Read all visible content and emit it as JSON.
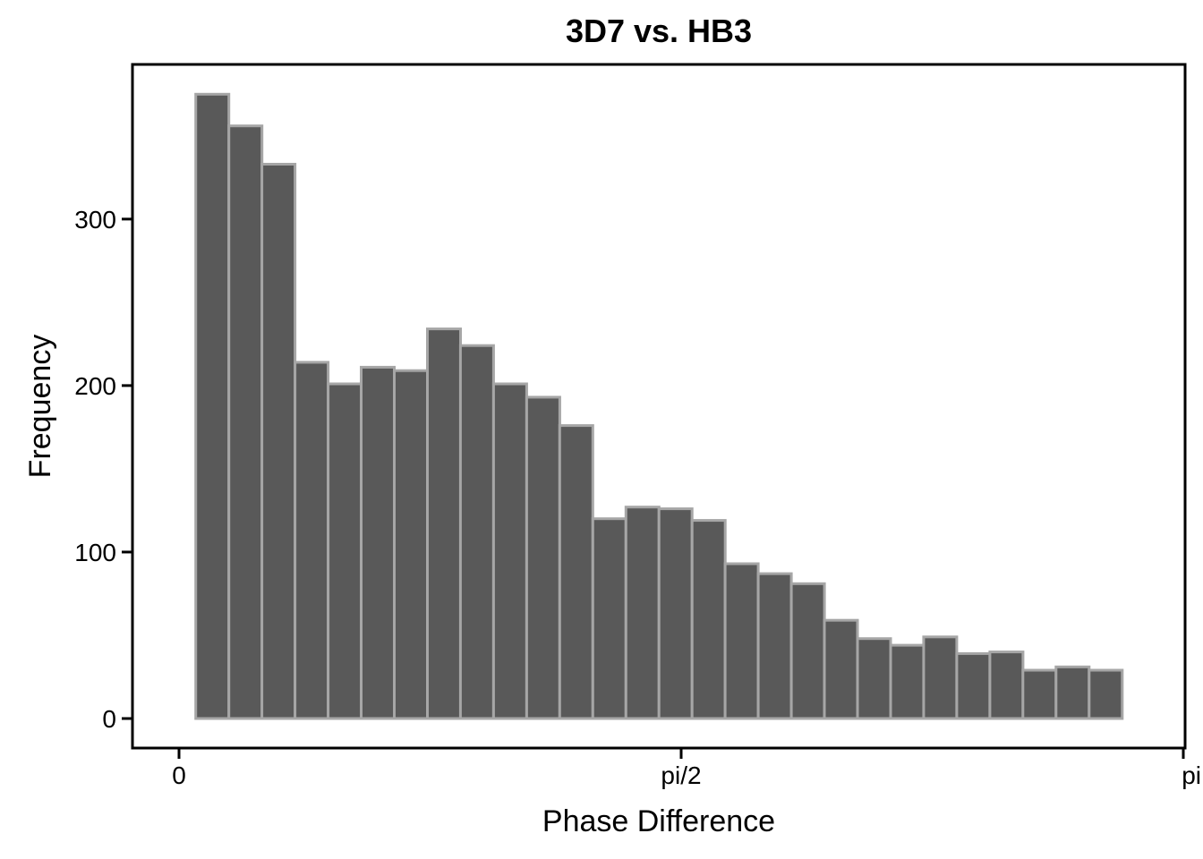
{
  "chart_data": {
    "type": "bar",
    "title": "3D7 vs. HB3",
    "xlabel": "Phase Difference",
    "ylabel": "Frequency",
    "x_domain": [
      0,
      3.1416
    ],
    "ylim": [
      0,
      400
    ],
    "x_ticks": [
      {
        "value": 0,
        "label": "0"
      },
      {
        "value": 1.5708,
        "label": "pi/2"
      },
      {
        "value": 3.1416,
        "label": "pi"
      }
    ],
    "y_ticks": [
      {
        "value": 0,
        "label": "0"
      },
      {
        "value": 100,
        "label": "100"
      },
      {
        "value": 200,
        "label": "200"
      },
      {
        "value": 300,
        "label": "300"
      }
    ],
    "grid": false,
    "legend": "none",
    "bin_start": 0.0524,
    "bin_width": 0.1035,
    "values": [
      375,
      356,
      333,
      214,
      201,
      211,
      209,
      234,
      224,
      201,
      193,
      176,
      120,
      127,
      126,
      119,
      93,
      87,
      81,
      59,
      48,
      44,
      49,
      39,
      40,
      29,
      31,
      29
    ],
    "colors": {
      "fill": "#595959",
      "stroke": "#a6a6a6"
    }
  }
}
